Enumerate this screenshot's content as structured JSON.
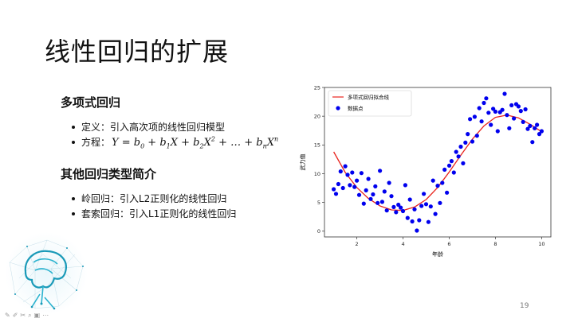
{
  "slide": {
    "title": "线性回归的扩展",
    "page_number": "19"
  },
  "section1": {
    "heading": "多项式回归",
    "bullets": [
      {
        "label": "定义：引入高次项的线性回归模型"
      },
      {
        "label": "方程："
      }
    ]
  },
  "section2": {
    "heading": "其他回归类型简介",
    "bullets": [
      {
        "label": "岭回归：引入L2正则化的线性回归"
      },
      {
        "label": "套索回归：引入L1正则化的线性回归"
      }
    ]
  },
  "toolbar_icons": [
    "pen-icon",
    "edit-icon",
    "eraser-icon",
    "search-icon",
    "camera-icon",
    "more-icon"
  ],
  "toolbar_glyphs": "✎✐✂⌕▣⋯",
  "chart_data": {
    "type": "scatter",
    "xlabel": "年龄",
    "ylabel": "武力值",
    "xlim": [
      0.6,
      10.4
    ],
    "ylim": [
      -1,
      25
    ],
    "xticks": [
      "2",
      "4",
      "6",
      "8",
      "10"
    ],
    "yticks": [
      "0",
      "5",
      "10",
      "15",
      "20",
      "25"
    ],
    "grid": false,
    "legend_position": "top-left",
    "colors": {
      "curve": "#e8241d",
      "points": "#0000ee"
    },
    "series": [
      {
        "name": "多项式回归拟合线",
        "kind": "line",
        "x": [
          1.0,
          1.5,
          2.0,
          2.5,
          3.0,
          3.5,
          4.0,
          4.5,
          5.0,
          5.5,
          6.0,
          6.5,
          7.0,
          7.5,
          8.0,
          8.5,
          9.0,
          9.5,
          10.0
        ],
        "y": [
          13.8,
          10.2,
          7.6,
          5.7,
          4.4,
          3.7,
          3.6,
          4.2,
          5.5,
          7.6,
          10.3,
          13.2,
          16.0,
          18.3,
          19.8,
          20.2,
          19.7,
          18.6,
          17.3
        ]
      },
      {
        "name": "数据点",
        "kind": "scatter",
        "points": [
          [
            1.0,
            7.3
          ],
          [
            1.1,
            6.5
          ],
          [
            1.2,
            8.2
          ],
          [
            1.3,
            10.4
          ],
          [
            1.4,
            7.5
          ],
          [
            1.5,
            11.3
          ],
          [
            1.6,
            9.8
          ],
          [
            1.7,
            8.0
          ],
          [
            1.8,
            10.2
          ],
          [
            1.9,
            7.7
          ],
          [
            2.0,
            8.8
          ],
          [
            2.1,
            6.3
          ],
          [
            2.2,
            10.1
          ],
          [
            2.3,
            4.8
          ],
          [
            2.4,
            7.1
          ],
          [
            2.5,
            9.1
          ],
          [
            2.6,
            5.6
          ],
          [
            2.7,
            6.4
          ],
          [
            2.8,
            7.8
          ],
          [
            2.9,
            4.9
          ],
          [
            3.0,
            10.5
          ],
          [
            3.1,
            5.1
          ],
          [
            3.2,
            6.9
          ],
          [
            3.3,
            3.6
          ],
          [
            3.4,
            8.4
          ],
          [
            3.5,
            6.1
          ],
          [
            3.6,
            4.2
          ],
          [
            3.7,
            3.3
          ],
          [
            3.8,
            4.6
          ],
          [
            3.9,
            4.1
          ],
          [
            4.0,
            3.5
          ],
          [
            4.1,
            8.0
          ],
          [
            4.2,
            2.3
          ],
          [
            4.3,
            5.5
          ],
          [
            4.4,
            1.7
          ],
          [
            4.5,
            3.8
          ],
          [
            4.6,
            0.1
          ],
          [
            4.7,
            1.9
          ],
          [
            4.8,
            4.4
          ],
          [
            4.9,
            6.5
          ],
          [
            5.0,
            4.7
          ],
          [
            5.1,
            1.6
          ],
          [
            5.2,
            4.3
          ],
          [
            5.3,
            8.8
          ],
          [
            5.4,
            3.0
          ],
          [
            5.5,
            7.9
          ],
          [
            5.6,
            4.9
          ],
          [
            5.7,
            8.4
          ],
          [
            5.8,
            10.7
          ],
          [
            5.9,
            6.7
          ],
          [
            6.0,
            11.4
          ],
          [
            6.1,
            12.2
          ],
          [
            6.2,
            10.2
          ],
          [
            6.3,
            13.8
          ],
          [
            6.4,
            13.0
          ],
          [
            6.5,
            14.7
          ],
          [
            6.6,
            11.8
          ],
          [
            6.7,
            15.4
          ],
          [
            6.8,
            16.9
          ],
          [
            6.9,
            19.5
          ],
          [
            7.0,
            15.6
          ],
          [
            7.1,
            19.9
          ],
          [
            7.2,
            16.6
          ],
          [
            7.3,
            21.4
          ],
          [
            7.4,
            19.1
          ],
          [
            7.5,
            22.3
          ],
          [
            7.6,
            23.1
          ],
          [
            7.7,
            20.6
          ],
          [
            7.8,
            18.5
          ],
          [
            7.9,
            21.3
          ],
          [
            8.0,
            20.8
          ],
          [
            8.1,
            17.4
          ],
          [
            8.2,
            20.7
          ],
          [
            8.3,
            21.1
          ],
          [
            8.4,
            23.9
          ],
          [
            8.5,
            20.2
          ],
          [
            8.6,
            17.9
          ],
          [
            8.7,
            21.9
          ],
          [
            8.8,
            19.6
          ],
          [
            8.9,
            22.1
          ],
          [
            9.0,
            21.7
          ],
          [
            9.1,
            20.9
          ],
          [
            9.2,
            19.0
          ],
          [
            9.3,
            21.2
          ],
          [
            9.4,
            17.8
          ],
          [
            9.5,
            18.3
          ],
          [
            9.6,
            15.5
          ],
          [
            9.7,
            17.9
          ],
          [
            9.8,
            18.5
          ],
          [
            9.9,
            16.9
          ],
          [
            10.0,
            17.4
          ]
        ]
      }
    ]
  }
}
